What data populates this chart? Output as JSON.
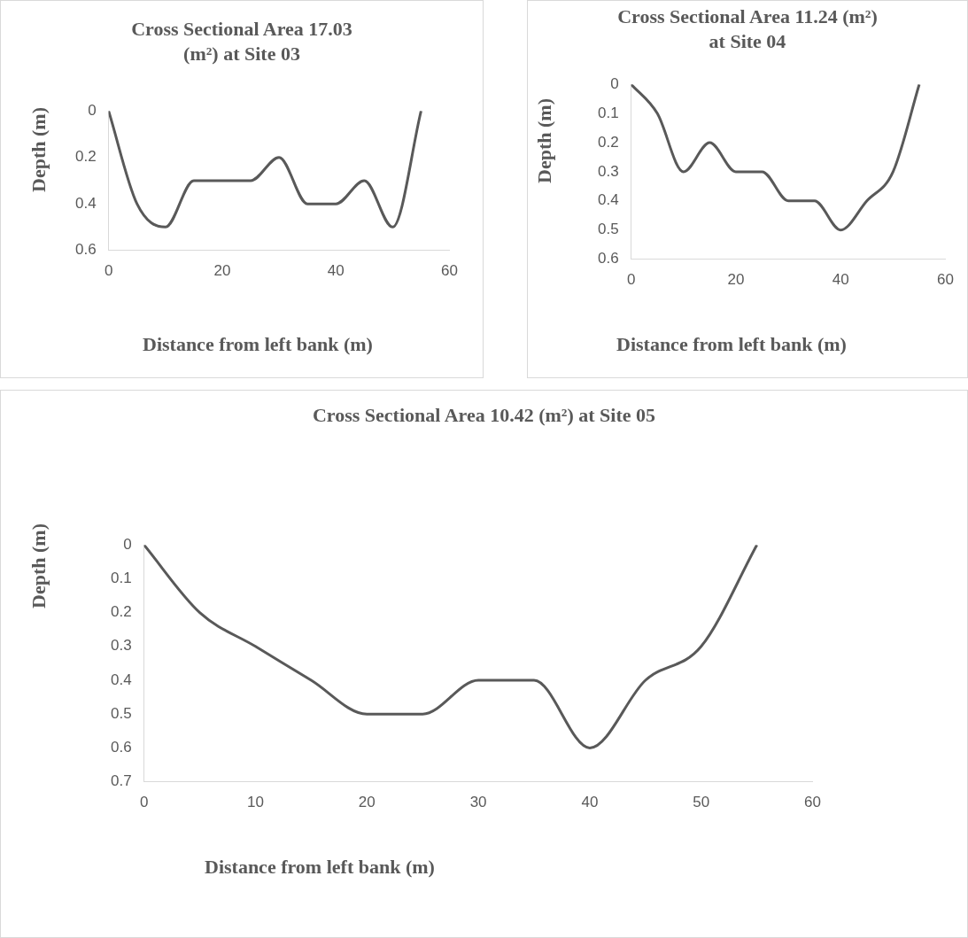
{
  "chart_data": [
    {
      "type": "line",
      "title": "Cross Sectional Area 17.03 (m²) at Site 03",
      "xlabel": "Distance from left bank (m)",
      "ylabel": "Depth (m)",
      "x": [
        0,
        5,
        10,
        15,
        20,
        25,
        30,
        35,
        40,
        45,
        50,
        55
      ],
      "series": [
        {
          "color": "#595959",
          "values": [
            0,
            0.4,
            0.5,
            0.3,
            0.3,
            0.3,
            0.2,
            0.4,
            0.4,
            0.3,
            0.5,
            0
          ]
        }
      ],
      "xlim": [
        0,
        60
      ],
      "xticks": [
        0,
        20,
        40,
        60
      ],
      "ylim": [
        0.6,
        0
      ],
      "yticks": [
        0,
        0.2,
        0.4,
        0.6
      ],
      "grid": false,
      "marker": "none"
    },
    {
      "type": "line",
      "title": "Cross Sectional Area 11.24 (m²) at Site 04",
      "xlabel": "Distance from left bank (m)",
      "ylabel": "Depth (m)",
      "x": [
        0,
        5,
        10,
        15,
        20,
        25,
        30,
        35,
        40,
        45,
        50,
        55
      ],
      "series": [
        {
          "color": "#595959",
          "values": [
            0,
            0.1,
            0.3,
            0.2,
            0.3,
            0.3,
            0.4,
            0.4,
            0.5,
            0.4,
            0.3,
            0
          ]
        }
      ],
      "xlim": [
        0,
        60
      ],
      "xticks": [
        0,
        20,
        40,
        60
      ],
      "ylim": [
        0.6,
        0
      ],
      "yticks": [
        0,
        0.1,
        0.2,
        0.3,
        0.4,
        0.5,
        0.6
      ],
      "grid": false,
      "marker": "none"
    },
    {
      "type": "line",
      "title": "Cross Sectional Area 10.42 (m²) at Site 05",
      "xlabel": "Distance from left bank (m)",
      "ylabel": "Depth (m)",
      "x": [
        0,
        5,
        10,
        15,
        20,
        25,
        30,
        35,
        40,
        45,
        50,
        55
      ],
      "series": [
        {
          "color": "#595959",
          "values": [
            0,
            0.2,
            0.3,
            0.4,
            0.5,
            0.5,
            0.4,
            0.4,
            0.6,
            0.4,
            0.3,
            0
          ]
        }
      ],
      "xlim": [
        0,
        60
      ],
      "xticks": [
        0,
        10,
        20,
        30,
        40,
        50,
        60
      ],
      "ylim": [
        0.7,
        0
      ],
      "yticks": [
        0,
        0.1,
        0.2,
        0.3,
        0.4,
        0.5,
        0.6,
        0.7
      ],
      "grid": false,
      "marker": "none"
    }
  ]
}
